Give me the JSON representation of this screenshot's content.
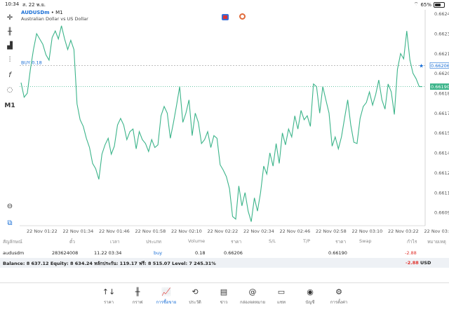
{
  "statusbar": {
    "time": "10:34",
    "date": "ส. 22 พ.ย.",
    "battery": "65%",
    "battery_level": 0.65
  },
  "symbol": {
    "name": "AUDUSDm",
    "separator": "•",
    "timeframe": "M1",
    "description": "Australian Dollar vs US Dollar"
  },
  "left_toolbar": {
    "timeframe": "M1"
  },
  "chart_data": {
    "type": "line",
    "color": "#3cb48a",
    "y_ticks": [
      "0.66245",
      "0.66230",
      "0.66215",
      "0.66200",
      "0.66185",
      "0.66170",
      "0.66155",
      "0.66140",
      "0.66125",
      "0.66110",
      "0.66095"
    ],
    "ylim": [
      0.66085,
      0.66248
    ],
    "x_ticks": [
      "22 Nov 01:22",
      "22 Nov 01:34",
      "22 Nov 01:46",
      "22 Nov 01:58",
      "22 Nov 02:10",
      "22 Nov 02:22",
      "22 Nov 02:34",
      "22 Nov 02:46",
      "22 Nov 02:58",
      "22 Nov 03:10",
      "22 Nov 03:22",
      "22 Nov 03:3"
    ],
    "buy_label": "BUY 0.18",
    "buy_price": "0.66206",
    "current_price": "0.66190",
    "buy_value": 0.66206,
    "current_value": 0.6619,
    "values": [
      0.66193,
      0.66182,
      0.66185,
      0.66203,
      0.66218,
      0.6623,
      0.66226,
      0.66222,
      0.66214,
      0.6621,
      0.66227,
      0.66232,
      0.66226,
      0.66236,
      0.66226,
      0.66218,
      0.66225,
      0.66218,
      0.66177,
      0.66165,
      0.6616,
      0.66151,
      0.66144,
      0.66132,
      0.66128,
      0.6612,
      0.66139,
      0.66146,
      0.66151,
      0.66139,
      0.66145,
      0.66161,
      0.66166,
      0.66161,
      0.6615,
      0.66156,
      0.66158,
      0.66143,
      0.66156,
      0.6615,
      0.66147,
      0.66141,
      0.6615,
      0.66144,
      0.66146,
      0.66168,
      0.66175,
      0.6617,
      0.66151,
      0.66163,
      0.66176,
      0.6619,
      0.66163,
      0.6617,
      0.6618,
      0.66153,
      0.6617,
      0.66163,
      0.66147,
      0.6615,
      0.66156,
      0.66144,
      0.66153,
      0.66151,
      0.66131,
      0.66127,
      0.66122,
      0.66113,
      0.66092,
      0.6609,
      0.66115,
      0.661,
      0.6611,
      0.66096,
      0.66088,
      0.66106,
      0.66096,
      0.6611,
      0.6613,
      0.66124,
      0.6614,
      0.6613,
      0.66147,
      0.66132,
      0.66155,
      0.66146,
      0.66158,
      0.66152,
      0.66168,
      0.66158,
      0.66172,
      0.66165,
      0.66168,
      0.6616,
      0.66192,
      0.6619,
      0.6617,
      0.6619,
      0.6618,
      0.6617,
      0.66145,
      0.66152,
      0.66143,
      0.66152,
      0.66166,
      0.6618,
      0.66161,
      0.66148,
      0.66147,
      0.66166,
      0.66175,
      0.66178,
      0.66186,
      0.66176,
      0.66184,
      0.66195,
      0.6618,
      0.66173,
      0.66192,
      0.66186,
      0.66169,
      0.66203,
      0.66215,
      0.66211,
      0.66232,
      0.6621,
      0.662,
      0.66196,
      0.6619,
      0.6619
    ]
  },
  "positions": {
    "headers": [
      "สัญลักษณ์",
      "ตั๋ว",
      "เวลา",
      "ประเภท",
      "Volume",
      "ราคา",
      "S/L",
      "T/P",
      "ราคา",
      "Swap",
      "กำไร",
      "หมายเหตุ"
    ],
    "rows": [
      {
        "symbol": "audusdm",
        "ticket": "283624008",
        "time": "11.22 03:34",
        "type": "buy",
        "volume": "0.18",
        "open_price": "0.66206",
        "sl": "",
        "tp": "",
        "price": "0.66190",
        "swap": "",
        "profit": "-2.88",
        "comment": ""
      }
    ]
  },
  "balance": {
    "text": "Balance: 8 637.12 Equity: 8 634.24 หลักประกัน: 119.17 ฟรี: 8 515.07 Level: 7 245.31%",
    "profit": "-2.88",
    "currency": "USD"
  },
  "nav": [
    {
      "label": "ราคา",
      "icon": "↑↓"
    },
    {
      "label": "กราฟ",
      "icon": "╫"
    },
    {
      "label": "การซื้อขาย",
      "icon": "📈"
    },
    {
      "label": "ประวัติ",
      "icon": "⟲"
    },
    {
      "label": "ข่าว",
      "icon": "▤"
    },
    {
      "label": "กล่องจดหมาย",
      "icon": "@"
    },
    {
      "label": "แชท",
      "icon": "▭"
    },
    {
      "label": "บัญชี",
      "icon": "◉"
    },
    {
      "label": "การตั้งค่า",
      "icon": "⚙"
    }
  ]
}
